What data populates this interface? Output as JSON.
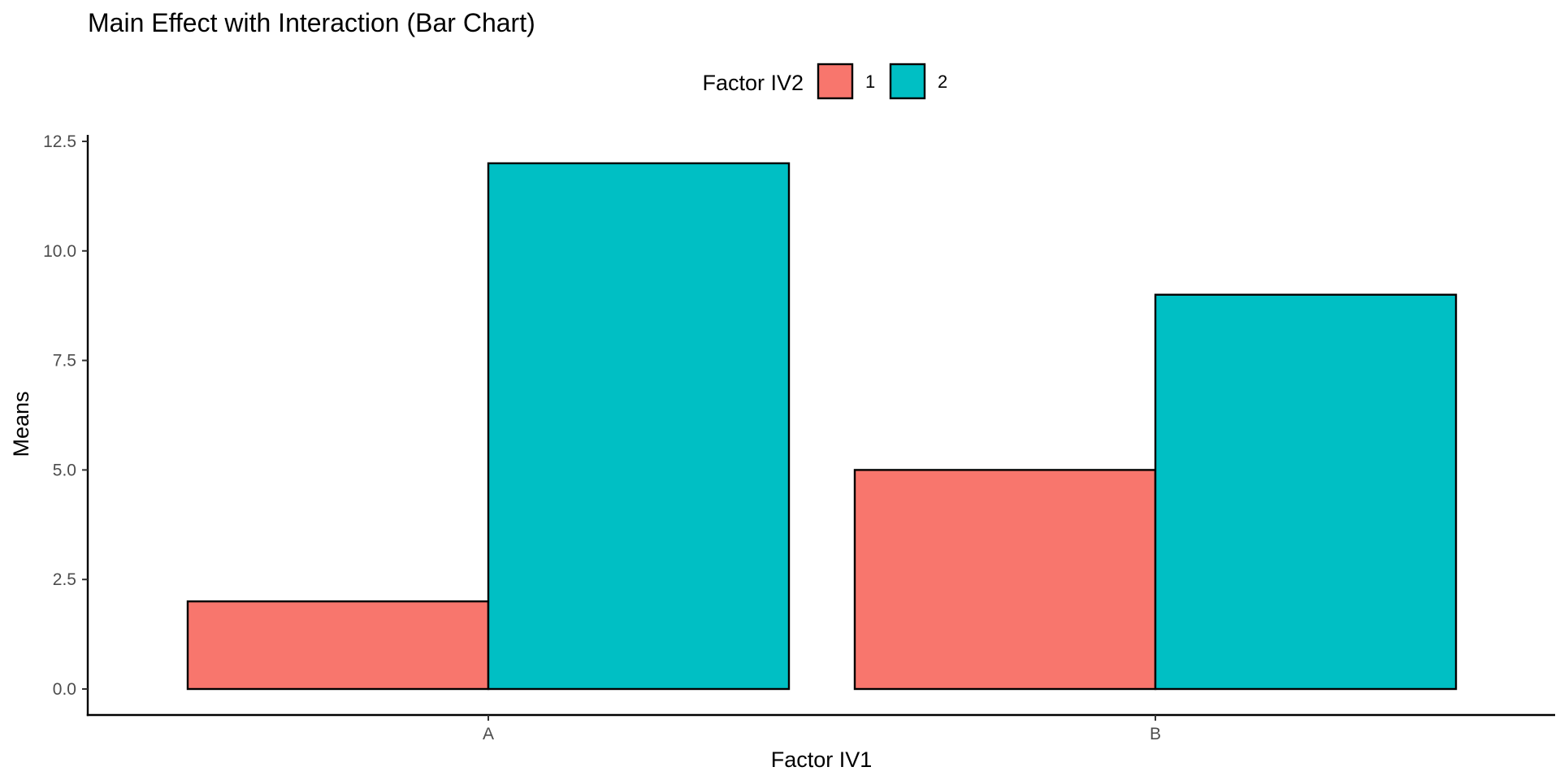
{
  "chart_data": {
    "type": "bar",
    "title": "Main Effect with Interaction (Bar Chart)",
    "xlabel": "Factor IV1",
    "ylabel": "Means",
    "categories": [
      "A",
      "B"
    ],
    "legend_title": "Factor IV2",
    "legend_position": "top",
    "series": [
      {
        "name": "1",
        "values": [
          2,
          5
        ],
        "color": "#F8766D"
      },
      {
        "name": "2",
        "values": [
          12,
          9
        ],
        "color": "#00BFC4"
      }
    ],
    "ylim": [
      0,
      12.5
    ],
    "yticks": [
      0.0,
      2.5,
      5.0,
      7.5,
      10.0,
      12.5
    ],
    "ytick_labels": [
      "0.0",
      "2.5",
      "5.0",
      "7.5",
      "10.0",
      "12.5"
    ],
    "grid": false,
    "bar_outline_color": "#000000"
  }
}
